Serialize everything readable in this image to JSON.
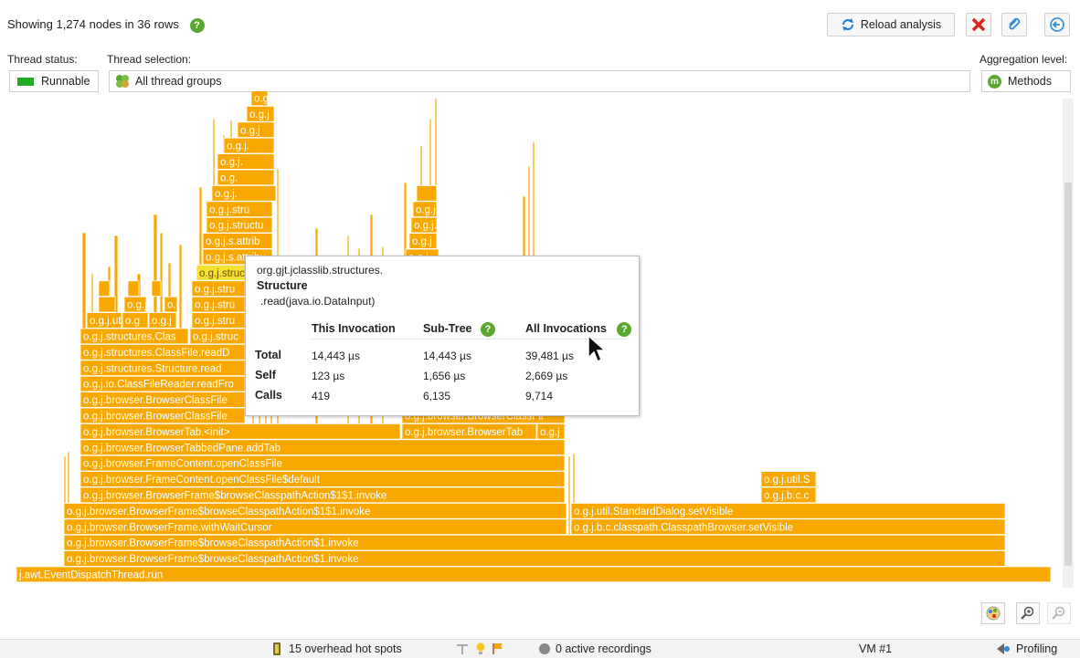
{
  "header": {
    "title": "Showing 1,274 nodes in 36 rows",
    "reload_label": "Reload analysis"
  },
  "thread_status": {
    "label": "Thread status:",
    "value": "Runnable",
    "color": "#22aa22"
  },
  "thread_selection": {
    "label": "Thread selection:",
    "value": "All thread groups"
  },
  "aggregation": {
    "label": "Aggregation level:",
    "value": "Methods"
  },
  "colors": {
    "frame": "#f8a800",
    "frame_hot": "#f6e132",
    "frame_border": "#ffffff",
    "text_on_frame": "#ffffff"
  },
  "flame_frames": [
    "j.awt.EventDispatchThread.run",
    "o.g.j.browser.BrowserFrame$browseClasspathAction$1.invoke",
    "o.g.j.browser.BrowserFrame$browseClasspathAction$1.invoke",
    "o.g.j.browser.BrowserFrame.withWaitCursor",
    "o.g.j.browser.BrowserFrame$browseClasspathAction$1$1.invoke",
    "o.g.j.browser.BrowserFrame$browseClasspathAction$1$1.invoke",
    "o.g.j.browser.FrameContent.openClassFile$default",
    "o.g.j.browser.FrameContent.openClassFile",
    "o.g.j.browser.BrowserTabbedPane.addTab",
    "o.g.j.browser.BrowserTab.<init>",
    "o.g.j.browser.BrowserClassFile",
    "o.g.j.browser.BrowserClassFile",
    "o.g.j.io.ClassFileReader.readFro",
    "o.g.j.structures.Structure.read",
    "o.g.j.structures.ClassFile.readD",
    "o.g.j.structures.Clas",
    "o.g.j.util.StandardDialog.setVisible",
    "o.g.j.b.c.classpath.ClasspathBrowser.setVisible",
    "o.g.j.util.S",
    "o.g.j.b.c.c",
    "o.g.j.browser.BrowserTab",
    "o.g.j.browser.BrowserClassFil",
    "o.g.j.structure",
    "o.g.j.s.attribu",
    "o.g.j.s.attrib",
    "o.g.j.structu",
    "o.g.j.stru",
    "o.g.j.stru",
    "o.g.j.stru",
    "o.g.j.struc",
    "o.g.j.util",
    "o.g.j",
    "o.g",
    "o.g.j",
    "o.g.j.",
    "o.g.",
    "o.g.j.",
    "o.g.j.",
    "o.g.j.",
    "o.g.j.",
    "o.g.j.",
    "o.g.j",
    "o.g.j.s",
    "o.g",
    "o.g.j",
    "o.g.j.ut",
    "o.g.j",
    "o.g.j."
  ],
  "tooltip": {
    "package": "org.gjt.jclasslib.structures.",
    "class": "Structure",
    "method": ".read(java.io.DataInput)",
    "columns": [
      "This Invocation",
      "Sub-Tree",
      "All Invocations"
    ],
    "rows": [
      {
        "label": "Total",
        "values": [
          "14,443 µs",
          "14,443 µs",
          "39,481 µs"
        ]
      },
      {
        "label": "Self",
        "values": [
          "123 µs",
          "1,656 µs",
          "2,669 µs"
        ]
      },
      {
        "label": "Calls",
        "values": [
          "419",
          "6,135",
          "9,714"
        ]
      }
    ]
  },
  "statusbar": {
    "hotspots": "15 overhead hot spots",
    "recordings": "0 active recordings",
    "vm": "VM #1",
    "mode": "Profiling"
  }
}
